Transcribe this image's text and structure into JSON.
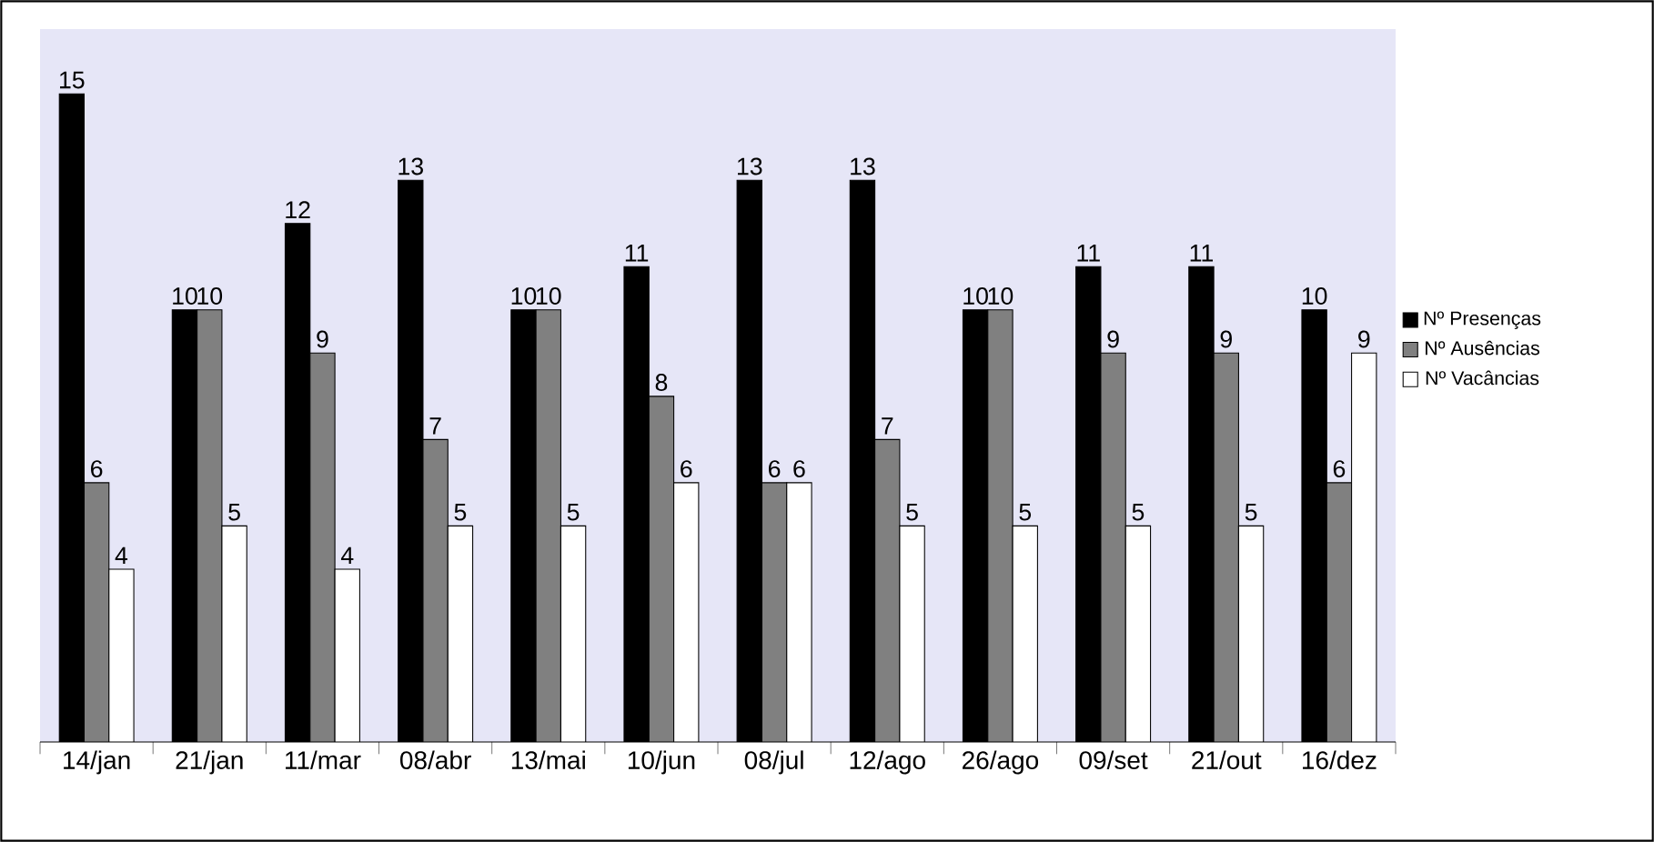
{
  "chart_data": {
    "type": "bar",
    "categories": [
      "14/jan",
      "21/jan",
      "11/mar",
      "08/abr",
      "13/mai",
      "10/jun",
      "08/jul",
      "12/ago",
      "26/ago",
      "09/set",
      "21/out",
      "16/dez"
    ],
    "series": [
      {
        "name": "Nº Presenças",
        "color": "#000000",
        "values": [
          15,
          10,
          12,
          13,
          10,
          11,
          13,
          13,
          10,
          11,
          11,
          10
        ]
      },
      {
        "name": "Nº Ausências",
        "color": "#808080",
        "values": [
          6,
          10,
          9,
          7,
          10,
          8,
          6,
          7,
          10,
          9,
          9,
          6
        ]
      },
      {
        "name": "Nº Vacâncias",
        "color": "#ffffff",
        "values": [
          4,
          5,
          4,
          5,
          5,
          6,
          6,
          5,
          5,
          5,
          5,
          9
        ]
      }
    ],
    "data_labels": true,
    "legend": "right"
  }
}
